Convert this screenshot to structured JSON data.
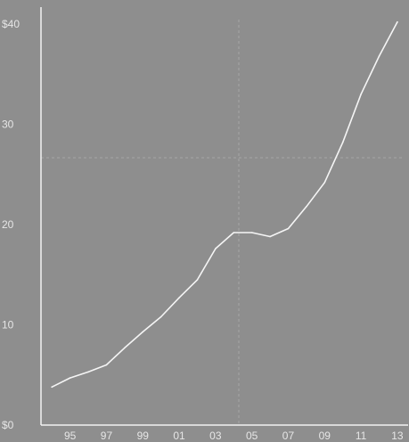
{
  "chart_data": {
    "type": "line",
    "title": "",
    "xlabel": "",
    "ylabel": "",
    "x": [
      1994,
      1995,
      1996,
      1997,
      1998,
      1999,
      2000,
      2001,
      2002,
      2003,
      2004,
      2005,
      2006,
      2007,
      2008,
      2009,
      2010,
      2011,
      2012,
      2013
    ],
    "series": [
      {
        "values": [
          3.8,
          4.7,
          5.3,
          6.0,
          7.7,
          9.3,
          10.8,
          12.7,
          14.5,
          17.6,
          19.2,
          19.2,
          18.8,
          19.6,
          21.8,
          24.2,
          28.2,
          33.0,
          36.8,
          40.2
        ]
      }
    ],
    "xlim": [
      1993.4,
      2013.3
    ],
    "ylim": [
      0,
      42
    ],
    "x_tick_labels": [
      "95",
      "97",
      "99",
      "01",
      "03",
      "05",
      "07",
      "09",
      "11",
      "13"
    ],
    "x_tick_values": [
      1995,
      1997,
      1999,
      2001,
      2003,
      2005,
      2007,
      2009,
      2011,
      2013
    ],
    "y_tick_labels": [
      "$0",
      "10",
      "20",
      "30",
      "$40"
    ],
    "y_tick_values": [
      0,
      10,
      20,
      30,
      40
    ],
    "grid": "faint dashed",
    "colors": {
      "background": "#8e8e8e",
      "axis": "#f2f2f2",
      "line": "#f5f5f5",
      "text": "#e6e6e6",
      "grid": "#a6a6a6"
    }
  }
}
